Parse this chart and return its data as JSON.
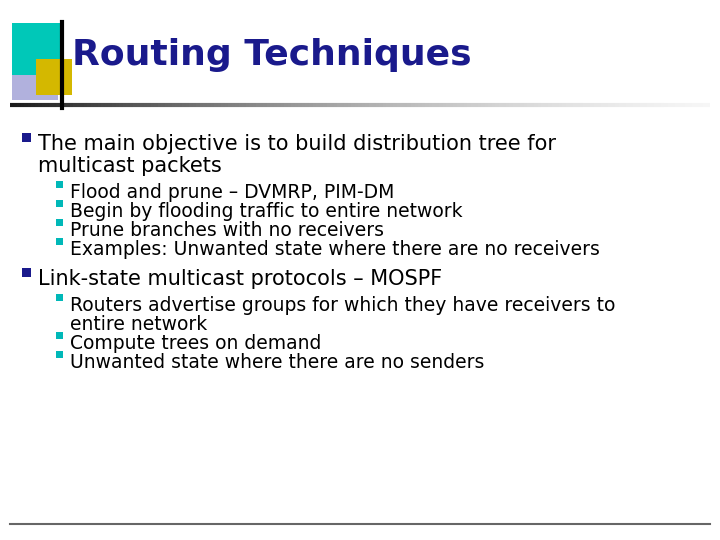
{
  "title": "Routing Techniques",
  "title_color": "#1a1a8c",
  "title_fontsize": 26,
  "background_color": "#ffffff",
  "bullet_color": "#1a1a8c",
  "sub_bullet_color": "#00b8b8",
  "text_color": "#000000",
  "bullet1_line1": "The main objective is to build distribution tree for",
  "bullet1_line2": "multicast packets",
  "bullet1_subs": [
    "Flood and prune – DVMRP, PIM-DM",
    "Begin by flooding traffic to entire network",
    "Prune branches with no receivers",
    "Examples: Unwanted state where there are no receivers"
  ],
  "bullet2": "Link-state multicast protocols – MOSPF",
  "bullet2_subs": [
    "Routers advertise groups for which they have receivers to",
    "entire network",
    "Compute trees on demand",
    "Unwanted state where there are no senders"
  ],
  "square_teal": "#00c8b8",
  "square_purple": "#8888cc",
  "square_yellow": "#d4b800",
  "body_fontsize": 15,
  "sub_fontsize": 13.5
}
